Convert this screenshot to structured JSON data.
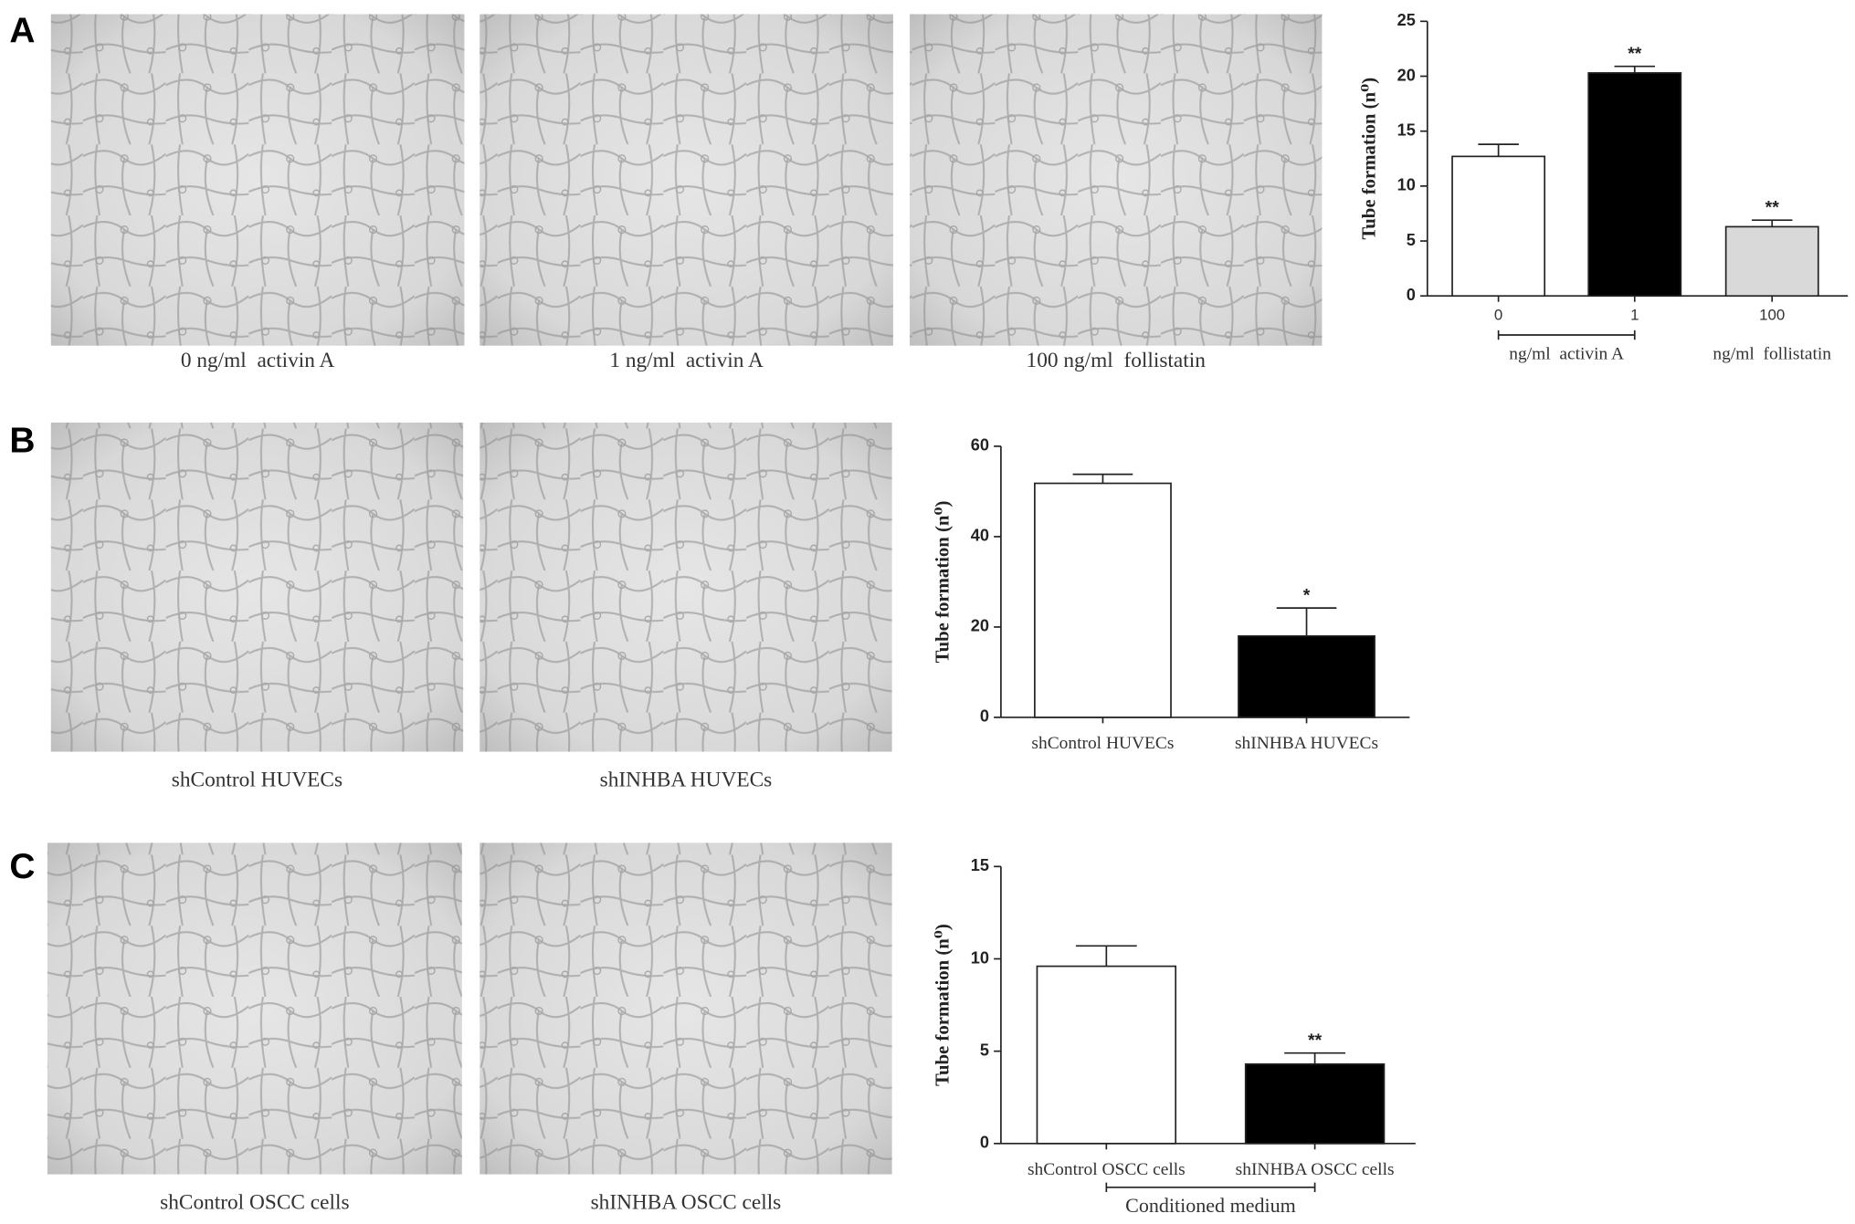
{
  "panels": [
    {
      "label": "A",
      "images": [
        "0 ng/ml  activin A",
        "1 ng/ml  activin A",
        "100 ng/ml  follistatin"
      ]
    },
    {
      "label": "B",
      "images": [
        "shControl HUVECs",
        "shINHBA HUVECs"
      ]
    },
    {
      "label": "C",
      "images": [
        "shControl OSCC cells",
        "shINHBA OSCC cells"
      ]
    }
  ],
  "chart_data": [
    {
      "type": "bar",
      "ylabel": "Tube formation (n⁰)",
      "categories": [
        "0",
        "1",
        "100"
      ],
      "values": [
        12.7,
        20.3,
        6.3
      ],
      "errors": [
        1.1,
        0.6,
        0.6
      ],
      "colors": [
        "#ffffff",
        "#000000",
        "#d9d9d9"
      ],
      "annotations": [
        null,
        "**",
        "**"
      ],
      "groups": [
        {
          "label": "ng/ml  activin A",
          "members": [
            "0",
            "1"
          ]
        },
        {
          "label": "ng/ml  follistatin",
          "members": [
            "100"
          ]
        }
      ],
      "ylim": [
        0,
        25
      ],
      "yticks": [
        0,
        5,
        10,
        15,
        20,
        25
      ]
    },
    {
      "type": "bar",
      "ylabel": "Tube formation (n⁰)",
      "categories": [
        "shControl HUVECs",
        "shINHBA HUVECs"
      ],
      "values": [
        51.8,
        18
      ],
      "errors": [
        2,
        6.2
      ],
      "colors": [
        "#ffffff",
        "#000000"
      ],
      "annotations": [
        null,
        "*"
      ],
      "ylim": [
        0,
        60
      ],
      "yticks": [
        0,
        20,
        40,
        60
      ]
    },
    {
      "type": "bar",
      "ylabel": "Tube formation (n⁰)",
      "categories": [
        "shControl OSCC cells",
        "shINHBA OSCC cells"
      ],
      "values": [
        9.6,
        4.3
      ],
      "errors": [
        1.1,
        0.6
      ],
      "colors": [
        "#ffffff",
        "#000000"
      ],
      "annotations": [
        null,
        "**"
      ],
      "groups": [
        {
          "label": "Conditioned medium",
          "members": [
            "shControl OSCC cells",
            "shINHBA OSCC cells"
          ]
        }
      ],
      "ylim": [
        0,
        15
      ],
      "yticks": [
        0,
        5,
        10,
        15
      ]
    }
  ]
}
